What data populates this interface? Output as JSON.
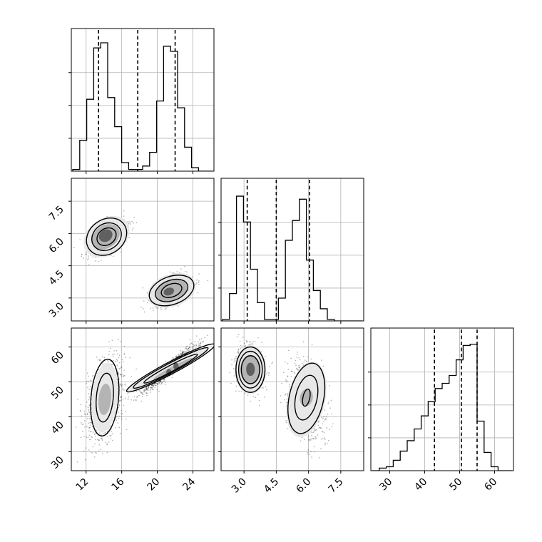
{
  "chart_data": {
    "type": "corner",
    "grid": true,
    "colors": {
      "line": "#000000",
      "grid": "#b0b0b0",
      "density_light": "#e8e8e8",
      "density_mid": "#b4b4b4",
      "density_dark": "#606060"
    },
    "parameters": [
      {
        "index": 0,
        "range": [
          10.5,
          26.2
        ],
        "ticks": [
          12,
          16,
          20,
          24
        ],
        "tick_labels": [
          "12",
          "16",
          "20",
          "24"
        ]
      },
      {
        "index": 1,
        "range": [
          2.0,
          8.5
        ],
        "ticks": [
          3.0,
          4.5,
          6.0,
          7.5
        ],
        "tick_labels": [
          "3.0",
          "4.5",
          "6.0",
          "7.5"
        ]
      },
      {
        "index": 2,
        "range": [
          25,
          65
        ],
        "ticks": [
          30,
          40,
          50,
          60
        ],
        "tick_labels": [
          "30",
          "40",
          "50",
          "60"
        ]
      }
    ],
    "histograms": [
      {
        "param": 0,
        "bin_edges": [
          10.5,
          11.285,
          12.07,
          12.855,
          13.64,
          14.425,
          15.21,
          15.995,
          16.78,
          17.565,
          18.35,
          19.135,
          19.92,
          20.705,
          21.49,
          22.275,
          23.06,
          23.845,
          24.63,
          25.415,
          26.2
        ],
        "counts": [
          0.2,
          3.6,
          8.4,
          14.4,
          15.0,
          8.6,
          5.2,
          1.0,
          0.2,
          0.2,
          0.6,
          2.2,
          8.2,
          14.6,
          14.0,
          7.4,
          2.8,
          0.4,
          0.0,
          0.0
        ],
        "ymax": 16.0,
        "quantiles": [
          13.4,
          17.8,
          22.0
        ]
      },
      {
        "param": 1,
        "bin_edges": [
          2.0,
          2.325,
          2.65,
          2.975,
          3.3,
          3.625,
          3.95,
          4.275,
          4.6,
          4.925,
          5.25,
          5.575,
          5.9,
          6.225,
          6.55,
          6.875,
          7.2,
          7.525,
          7.85,
          8.175,
          8.5
        ],
        "counts": [
          0.2,
          3.6,
          16.4,
          13.0,
          6.8,
          2.4,
          0.2,
          0.2,
          3.0,
          10.6,
          13.2,
          16.0,
          8.0,
          4.0,
          1.6,
          0.2,
          0.0,
          0.0,
          0.0,
          0.0
        ],
        "ymax": 18.0,
        "quantiles": [
          3.15,
          4.5,
          6.05
        ]
      },
      {
        "param": 2,
        "bin_edges": [
          25,
          27,
          29,
          31,
          33,
          35,
          37,
          39,
          41,
          43,
          45,
          47,
          49,
          51,
          53,
          55,
          57,
          59,
          61,
          63,
          65
        ],
        "counts": [
          0.0,
          0.4,
          0.6,
          1.6,
          3.0,
          4.6,
          6.4,
          8.4,
          10.6,
          12.6,
          13.4,
          14.6,
          17.0,
          19.2,
          19.4,
          7.6,
          2.8,
          0.6,
          0.0,
          0.0
        ],
        "ymax": 21.0,
        "quantiles": [
          42.8,
          50.5,
          55.0
        ]
      }
    ],
    "pairs": [
      {
        "x_param": 0,
        "y_param": 1,
        "clusters": [
          {
            "mean": [
              14.3,
              5.85
            ],
            "sd": [
              1.05,
              0.38
            ],
            "corr": 0.55,
            "n": 900
          },
          {
            "mean": [
              21.6,
              3.35
            ],
            "sd": [
              1.15,
              0.32
            ],
            "corr": 0.55,
            "n": 900
          }
        ],
        "density": [
          {
            "level": "light",
            "center": [
              14.3,
              5.85
            ],
            "size": [
              5.6,
              1.7
            ],
            "angle": -35
          },
          {
            "level": "mid",
            "center": [
              14.2,
              5.85
            ],
            "size": [
              3.4,
              1.05
            ],
            "angle": -35
          },
          {
            "level": "dark",
            "center": [
              14.2,
              5.9
            ],
            "size": [
              1.6,
              0.55
            ],
            "angle": -35
          },
          {
            "level": "light",
            "center": [
              21.6,
              3.35
            ],
            "size": [
              5.6,
              1.5
            ],
            "angle": -20
          },
          {
            "level": "mid",
            "center": [
              21.6,
              3.35
            ],
            "size": [
              3.6,
              0.95
            ],
            "angle": -20
          },
          {
            "level": "dark",
            "center": [
              21.3,
              3.3
            ],
            "size": [
              1.2,
              0.35
            ],
            "angle": -20
          }
        ],
        "contours": [
          {
            "center": [
              14.3,
              5.85
            ],
            "size": [
              2.3,
              0.75
            ],
            "angle": -35
          },
          {
            "center": [
              14.3,
              5.85
            ],
            "size": [
              3.5,
              1.2
            ],
            "angle": -35
          },
          {
            "center": [
              14.3,
              5.85
            ],
            "size": [
              4.8,
              1.6
            ],
            "angle": -35
          },
          {
            "center": [
              21.6,
              3.35
            ],
            "size": [
              2.4,
              0.6
            ],
            "angle": -20
          },
          {
            "center": [
              21.6,
              3.35
            ],
            "size": [
              3.8,
              0.95
            ],
            "angle": -20
          },
          {
            "center": [
              21.6,
              3.35
            ],
            "size": [
              5.2,
              1.3
            ],
            "angle": -20
          }
        ]
      },
      {
        "x_param": 0,
        "y_param": 2,
        "clusters": [
          {
            "mean": [
              14.1,
              45.0
            ],
            "sd": [
              1.1,
              5.8
            ],
            "corr": 0.35,
            "n": 900
          },
          {
            "mean": [
              21.3,
              53.6
            ],
            "sd": [
              1.5,
              3.4
            ],
            "corr": 0.95,
            "n": 900
          }
        ],
        "density": [
          {
            "level": "light",
            "center": [
              14.1,
              45.5
            ],
            "size": [
              2.9,
              20.0
            ],
            "angle": 5
          },
          {
            "level": "mid",
            "center": [
              14.1,
              45.0
            ],
            "size": [
              1.4,
              9.0
            ],
            "angle": 5
          },
          {
            "level": "light",
            "center": [
              21.2,
              53.5
            ],
            "size": [
              10.5,
              2.8
            ],
            "angle": -28
          },
          {
            "level": "mid",
            "center": [
              21.8,
              53.8
            ],
            "size": [
              5.0,
              1.4
            ],
            "angle": -28
          },
          {
            "level": "dark",
            "center": [
              21.3,
              52.7
            ],
            "size": [
              0.6,
              2.0
            ],
            "angle": 0
          },
          {
            "level": "dark",
            "center": [
              22.1,
              54.5
            ],
            "size": [
              0.6,
              2.0
            ],
            "angle": 0
          }
        ],
        "contours": [
          {
            "center": [
              14.1,
              45.5
            ],
            "size": [
              1.9,
              14.0
            ],
            "angle": 5
          },
          {
            "center": [
              14.1,
              45.5
            ],
            "size": [
              3.1,
              22.0
            ],
            "angle": 5
          },
          {
            "center": [
              21.5,
              53.8
            ],
            "size": [
              6.8,
              1.8
            ],
            "angle": -28
          },
          {
            "center": [
              21.5,
              54.0
            ],
            "size": [
              9.5,
              2.7
            ],
            "angle": -28
          },
          {
            "center": [
              21.5,
              54.0
            ],
            "size": [
              11.2,
              3.4
            ],
            "angle": -28
          }
        ]
      },
      {
        "x_param": 1,
        "y_param": 2,
        "clusters": [
          {
            "mean": [
              3.3,
              53.5
            ],
            "sd": [
              0.32,
              3.3
            ],
            "corr": -0.1,
            "n": 900
          },
          {
            "mean": [
              5.9,
              45.0
            ],
            "sd": [
              0.42,
              5.6
            ],
            "corr": -0.25,
            "n": 900
          }
        ],
        "density": [
          {
            "level": "light",
            "center": [
              3.3,
              53.5
            ],
            "size": [
              1.45,
              14.0
            ],
            "angle": 0
          },
          {
            "level": "mid",
            "center": [
              3.3,
              53.5
            ],
            "size": [
              0.95,
              8.5
            ],
            "angle": 0
          },
          {
            "level": "dark",
            "center": [
              3.3,
              53.6
            ],
            "size": [
              0.4,
              3.8
            ],
            "angle": 0
          },
          {
            "level": "light",
            "center": [
              5.9,
              45.0
            ],
            "size": [
              1.75,
              22.0
            ],
            "angle": 12
          },
          {
            "level": "mid",
            "center": [
              5.9,
              45.5
            ],
            "size": [
              0.6,
              5.0
            ],
            "angle": 12
          }
        ],
        "contours": [
          {
            "center": [
              3.3,
              53.5
            ],
            "size": [
              0.85,
              8.0
            ],
            "angle": 0
          },
          {
            "center": [
              3.3,
              53.5
            ],
            "size": [
              1.1,
              10.5
            ],
            "angle": 0
          },
          {
            "center": [
              3.3,
              53.5
            ],
            "size": [
              1.35,
              13.0
            ],
            "angle": 0
          },
          {
            "center": [
              5.9,
              45.5
            ],
            "size": [
              0.32,
              5.0
            ],
            "angle": 12
          },
          {
            "center": [
              5.9,
              45.5
            ],
            "size": [
              1.0,
              13.0
            ],
            "angle": 12
          },
          {
            "center": [
              5.9,
              45.3
            ],
            "size": [
              1.6,
              20.5
            ],
            "angle": 12
          }
        ]
      }
    ]
  }
}
